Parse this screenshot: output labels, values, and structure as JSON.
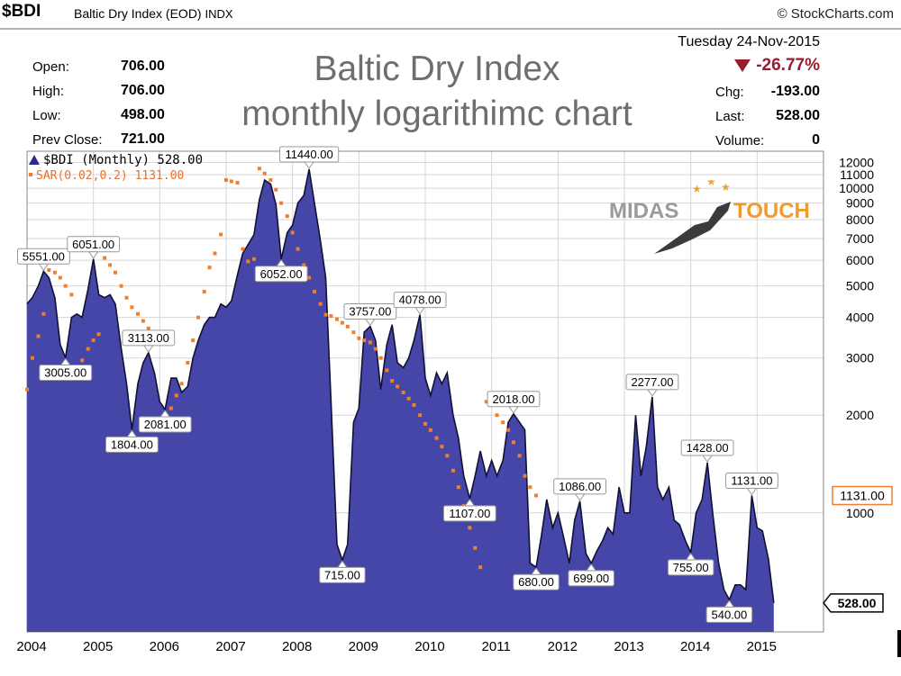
{
  "header": {
    "ticker": "$BDI",
    "name": "Baltic Dry Index (EOD)",
    "exchange": "INDX",
    "credit": "© StockCharts.com"
  },
  "stats_left": [
    {
      "label": "Open:",
      "value": "706.00"
    },
    {
      "label": "High:",
      "value": "706.00"
    },
    {
      "label": "Low:",
      "value": "498.00"
    },
    {
      "label": "Prev Close:",
      "value": "721.00"
    }
  ],
  "title": {
    "line1": "Baltic Dry Index",
    "line2": "monthly logarithimc chart"
  },
  "stats_right": {
    "date": "Tuesday  24-Nov-2015",
    "pct_change": "-26.77%",
    "rows": [
      {
        "label": "Chg:",
        "value": "-193.00"
      },
      {
        "label": "Last:",
        "value": "528.00"
      },
      {
        "label": "Volume:",
        "value": "0"
      }
    ]
  },
  "legend": {
    "series1": "$BDI (Monthly) 528.00",
    "series2": "SAR(0.02,0.2) 1131.00"
  },
  "logo": {
    "word1": "MIDAS",
    "word2": "TOUCH"
  },
  "colors": {
    "area": "#4646a8",
    "area_line": "#111133",
    "sar": "#ef7f2e",
    "grid": "#d6d6d6",
    "title": "#6e6e6e",
    "negative": "#9b1b30"
  },
  "chart_data": {
    "type": "area",
    "y_scale": "log",
    "ylim": [
      430,
      13000
    ],
    "y_ticks": [
      1000,
      2000,
      3000,
      4000,
      5000,
      6000,
      7000,
      8000,
      9000,
      10000,
      11000,
      12000
    ],
    "x_ticks": [
      2004,
      2005,
      2006,
      2007,
      2008,
      2009,
      2010,
      2011,
      2012,
      2013,
      2014,
      2015
    ],
    "xlim": [
      2004,
      2016
    ],
    "series": [
      {
        "values": [
          [
            2004.0,
            4400
          ],
          [
            2004.08,
            4600
          ],
          [
            2004.17,
            5000
          ],
          [
            2004.25,
            5551
          ],
          [
            2004.33,
            5300
          ],
          [
            2004.42,
            4600
          ],
          [
            2004.5,
            3300
          ],
          [
            2004.58,
            3005
          ],
          [
            2004.67,
            4000
          ],
          [
            2004.75,
            4100
          ],
          [
            2004.83,
            4000
          ],
          [
            2004.92,
            4900
          ],
          [
            2005.0,
            6051
          ],
          [
            2005.08,
            4700
          ],
          [
            2005.17,
            4600
          ],
          [
            2005.25,
            4700
          ],
          [
            2005.33,
            4400
          ],
          [
            2005.42,
            3200
          ],
          [
            2005.5,
            2500
          ],
          [
            2005.58,
            1804
          ],
          [
            2005.67,
            2500
          ],
          [
            2005.75,
            2900
          ],
          [
            2005.83,
            3113
          ],
          [
            2005.92,
            2700
          ],
          [
            2006.0,
            2200
          ],
          [
            2006.08,
            2081
          ],
          [
            2006.17,
            2600
          ],
          [
            2006.25,
            2600
          ],
          [
            2006.33,
            2350
          ],
          [
            2006.42,
            2450
          ],
          [
            2006.5,
            3000
          ],
          [
            2006.58,
            3400
          ],
          [
            2006.67,
            3800
          ],
          [
            2006.75,
            4000
          ],
          [
            2006.83,
            4000
          ],
          [
            2006.92,
            4400
          ],
          [
            2007.0,
            4300
          ],
          [
            2007.08,
            4500
          ],
          [
            2007.17,
            5400
          ],
          [
            2007.25,
            6300
          ],
          [
            2007.33,
            6700
          ],
          [
            2007.42,
            7200
          ],
          [
            2007.5,
            9200
          ],
          [
            2007.58,
            10600
          ],
          [
            2007.67,
            10300
          ],
          [
            2007.75,
            8900
          ],
          [
            2007.83,
            6052
          ],
          [
            2007.92,
            7300
          ],
          [
            2008.0,
            7700
          ],
          [
            2008.08,
            9000
          ],
          [
            2008.17,
            9500
          ],
          [
            2008.25,
            11440
          ],
          [
            2008.33,
            9000
          ],
          [
            2008.42,
            6900
          ],
          [
            2008.5,
            5300
          ],
          [
            2008.58,
            2200
          ],
          [
            2008.67,
            800
          ],
          [
            2008.75,
            715
          ],
          [
            2008.83,
            800
          ],
          [
            2008.92,
            1900
          ],
          [
            2009.0,
            2100
          ],
          [
            2009.08,
            3600
          ],
          [
            2009.17,
            3757
          ],
          [
            2009.25,
            3400
          ],
          [
            2009.33,
            2400
          ],
          [
            2009.42,
            3300
          ],
          [
            2009.5,
            3800
          ],
          [
            2009.58,
            2900
          ],
          [
            2009.67,
            2800
          ],
          [
            2009.75,
            3000
          ],
          [
            2009.83,
            3400
          ],
          [
            2009.92,
            4078
          ],
          [
            2010.0,
            2600
          ],
          [
            2010.08,
            2300
          ],
          [
            2010.17,
            2700
          ],
          [
            2010.25,
            2500
          ],
          [
            2010.33,
            2700
          ],
          [
            2010.42,
            2000
          ],
          [
            2010.5,
            1700
          ],
          [
            2010.58,
            1300
          ],
          [
            2010.67,
            1107
          ],
          [
            2010.75,
            1300
          ],
          [
            2010.83,
            1550
          ],
          [
            2010.92,
            1300
          ],
          [
            2011.0,
            1450
          ],
          [
            2011.08,
            1300
          ],
          [
            2011.17,
            1450
          ],
          [
            2011.25,
            1900
          ],
          [
            2011.33,
            2018
          ],
          [
            2011.42,
            1900
          ],
          [
            2011.5,
            1800
          ],
          [
            2011.58,
            700
          ],
          [
            2011.67,
            680
          ],
          [
            2011.75,
            850
          ],
          [
            2011.83,
            1100
          ],
          [
            2011.92,
            900
          ],
          [
            2012.0,
            1000
          ],
          [
            2012.08,
            850
          ],
          [
            2012.17,
            700
          ],
          [
            2012.25,
            950
          ],
          [
            2012.33,
            1086
          ],
          [
            2012.42,
            750
          ],
          [
            2012.5,
            699
          ],
          [
            2012.58,
            760
          ],
          [
            2012.67,
            820
          ],
          [
            2012.75,
            900
          ],
          [
            2012.83,
            860
          ],
          [
            2012.92,
            1200
          ],
          [
            2013.0,
            1000
          ],
          [
            2013.08,
            1000
          ],
          [
            2013.17,
            2000
          ],
          [
            2013.25,
            1300
          ],
          [
            2013.33,
            1600
          ],
          [
            2013.42,
            2277
          ],
          [
            2013.5,
            1200
          ],
          [
            2013.58,
            1100
          ],
          [
            2013.67,
            1200
          ],
          [
            2013.75,
            950
          ],
          [
            2013.83,
            920
          ],
          [
            2013.92,
            820
          ],
          [
            2014.0,
            755
          ],
          [
            2014.08,
            1000
          ],
          [
            2014.17,
            1100
          ],
          [
            2014.25,
            1428
          ],
          [
            2014.33,
            1000
          ],
          [
            2014.42,
            700
          ],
          [
            2014.5,
            580
          ],
          [
            2014.58,
            540
          ],
          [
            2014.67,
            600
          ],
          [
            2014.75,
            600
          ],
          [
            2014.83,
            580
          ],
          [
            2014.92,
            1131
          ],
          [
            2015.0,
            900
          ],
          [
            2015.08,
            880
          ],
          [
            2015.17,
            720
          ],
          [
            2015.25,
            528
          ]
        ]
      },
      {
        "values": [
          [
            2004.0,
            2400
          ],
          [
            2004.08,
            3000
          ],
          [
            2004.17,
            3500
          ],
          [
            2004.25,
            4100
          ],
          [
            2004.33,
            5600
          ],
          [
            2004.42,
            5500
          ],
          [
            2004.5,
            5300
          ],
          [
            2004.58,
            5000
          ],
          [
            2004.67,
            4700
          ],
          [
            2004.75,
            2800
          ],
          [
            2004.83,
            2950
          ],
          [
            2004.92,
            3200
          ],
          [
            2005.0,
            3400
          ],
          [
            2005.08,
            3550
          ],
          [
            2005.17,
            6100
          ],
          [
            2005.25,
            5800
          ],
          [
            2005.33,
            5500
          ],
          [
            2005.42,
            5000
          ],
          [
            2005.5,
            4600
          ],
          [
            2005.58,
            4300
          ],
          [
            2005.67,
            4100
          ],
          [
            2005.75,
            3900
          ],
          [
            2005.83,
            3700
          ],
          [
            2005.92,
            1800
          ],
          [
            2006.0,
            1880
          ],
          [
            2006.08,
            1950
          ],
          [
            2006.17,
            2100
          ],
          [
            2006.25,
            2300
          ],
          [
            2006.33,
            2500
          ],
          [
            2006.42,
            2900
          ],
          [
            2006.5,
            3400
          ],
          [
            2006.58,
            4000
          ],
          [
            2006.67,
            4800
          ],
          [
            2006.75,
            5700
          ],
          [
            2006.83,
            6300
          ],
          [
            2006.92,
            7200
          ],
          [
            2007.0,
            10600
          ],
          [
            2007.08,
            10500
          ],
          [
            2007.17,
            10400
          ],
          [
            2007.25,
            6500
          ],
          [
            2007.33,
            5950
          ],
          [
            2007.42,
            6050
          ],
          [
            2007.5,
            11500
          ],
          [
            2007.58,
            11100
          ],
          [
            2007.67,
            10600
          ],
          [
            2007.75,
            9900
          ],
          [
            2007.83,
            9000
          ],
          [
            2007.92,
            8200
          ],
          [
            2008.0,
            7300
          ],
          [
            2008.08,
            6500
          ],
          [
            2008.17,
            5800
          ],
          [
            2008.25,
            5300
          ],
          [
            2008.33,
            4800
          ],
          [
            2008.42,
            4400
          ],
          [
            2008.5,
            4078
          ],
          [
            2008.58,
            4040
          ],
          [
            2008.67,
            3950
          ],
          [
            2008.75,
            3850
          ],
          [
            2008.83,
            3750
          ],
          [
            2008.92,
            3600
          ],
          [
            2009.0,
            3450
          ],
          [
            2009.08,
            3400
          ],
          [
            2009.17,
            3350
          ],
          [
            2009.25,
            3200
          ],
          [
            2009.33,
            3000
          ],
          [
            2009.42,
            2750
          ],
          [
            2009.5,
            2550
          ],
          [
            2009.58,
            2450
          ],
          [
            2009.67,
            2350
          ],
          [
            2009.75,
            2250
          ],
          [
            2009.83,
            2150
          ],
          [
            2009.92,
            2000
          ],
          [
            2010.0,
            1880
          ],
          [
            2010.08,
            1800
          ],
          [
            2010.17,
            1700
          ],
          [
            2010.25,
            1600
          ],
          [
            2010.33,
            1500
          ],
          [
            2010.42,
            1350
          ],
          [
            2010.5,
            1200
          ],
          [
            2010.58,
            1050
          ],
          [
            2010.67,
            900
          ],
          [
            2010.75,
            780
          ],
          [
            2010.83,
            680
          ],
          [
            2010.92,
            2200
          ],
          [
            2011.0,
            2150
          ],
          [
            2011.08,
            2000
          ],
          [
            2011.17,
            1900
          ],
          [
            2011.25,
            1800
          ],
          [
            2011.33,
            1650
          ],
          [
            2011.42,
            1500
          ],
          [
            2011.5,
            1300
          ],
          [
            2011.58,
            1200
          ],
          [
            2011.67,
            1131
          ]
        ]
      }
    ]
  },
  "annotations": [
    {
      "text": "5551.00",
      "x": 2004.25,
      "y": 5551,
      "pos": "above"
    },
    {
      "text": "3005.00",
      "x": 2004.58,
      "y": 3005,
      "pos": "below"
    },
    {
      "text": "6051.00",
      "x": 2005.0,
      "y": 6051,
      "pos": "above"
    },
    {
      "text": "1804.00",
      "x": 2005.58,
      "y": 1804,
      "pos": "below"
    },
    {
      "text": "3113.00",
      "x": 2005.83,
      "y": 3113,
      "pos": "above"
    },
    {
      "text": "2081.00",
      "x": 2006.08,
      "y": 2081,
      "pos": "below"
    },
    {
      "text": "6052.00",
      "x": 2007.83,
      "y": 6052,
      "pos": "below"
    },
    {
      "text": "11440.00",
      "x": 2008.25,
      "y": 11440,
      "pos": "above"
    },
    {
      "text": "715.00",
      "x": 2008.75,
      "y": 715,
      "pos": "below"
    },
    {
      "text": "3757.00",
      "x": 2009.17,
      "y": 3757,
      "pos": "above"
    },
    {
      "text": "4078.00",
      "x": 2009.92,
      "y": 4078,
      "pos": "above"
    },
    {
      "text": "1107.00",
      "x": 2010.67,
      "y": 1107,
      "pos": "below"
    },
    {
      "text": "2018.00",
      "x": 2011.33,
      "y": 2018,
      "pos": "above"
    },
    {
      "text": "680.00",
      "x": 2011.67,
      "y": 680,
      "pos": "below"
    },
    {
      "text": "1086.00",
      "x": 2012.33,
      "y": 1086,
      "pos": "above"
    },
    {
      "text": "699.00",
      "x": 2012.5,
      "y": 699,
      "pos": "below"
    },
    {
      "text": "2277.00",
      "x": 2013.42,
      "y": 2277,
      "pos": "above"
    },
    {
      "text": "755.00",
      "x": 2014.0,
      "y": 755,
      "pos": "below"
    },
    {
      "text": "1428.00",
      "x": 2014.25,
      "y": 1428,
      "pos": "above"
    },
    {
      "text": "540.00",
      "x": 2014.58,
      "y": 540,
      "pos": "below"
    },
    {
      "text": "1131.00",
      "x": 2014.92,
      "y": 1131,
      "pos": "above"
    }
  ],
  "last_labels": {
    "sar": "1131.00",
    "price": "528.00"
  }
}
